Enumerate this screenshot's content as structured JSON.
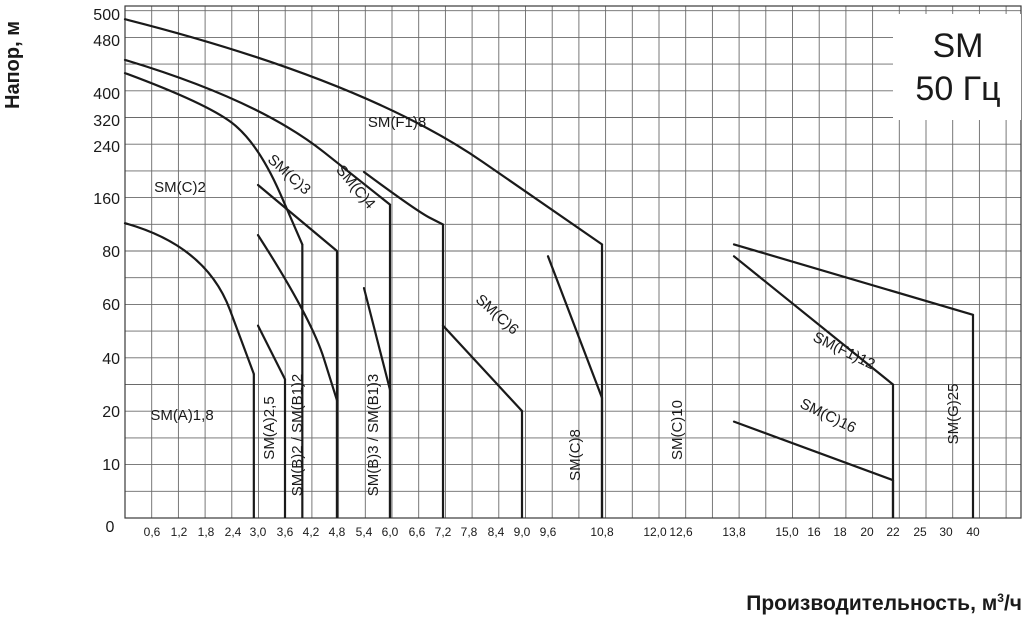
{
  "chart_data": {
    "type": "line",
    "title": "SM",
    "subtitle": "50 Гц",
    "ylabel": "Напор, м",
    "xlabel": "Производительность, м",
    "xlabel_sup": "3",
    "xlabel_suffix": "/ч",
    "origin_label": "0",
    "x_ticks": [
      "0,6",
      "1,2",
      "1,8",
      "2,4",
      "3,0",
      "3,6",
      "4,2",
      "4,8",
      "5,4",
      "6,0",
      "6,6",
      "7,2",
      "7,8",
      "8,4",
      "9,0",
      "9,6",
      "10,8",
      "12,0",
      "12,6",
      "13,8",
      "15,0",
      "16",
      "18",
      "20",
      "22",
      "25",
      "30",
      "40"
    ],
    "y_ticks": [
      "10",
      "20",
      "40",
      "60",
      "80",
      "160",
      "240",
      "320",
      "400",
      "480",
      "500"
    ],
    "grid": true,
    "series": [
      {
        "name": "SM(A)1,8",
        "x": [
          0,
          1.8,
          2.9
        ],
        "y": [
          122,
          88,
          34
        ]
      },
      {
        "name": "SM(C)2",
        "x": [
          0,
          1.8,
          3.0,
          4.0
        ],
        "y": [
          430,
          370,
          250,
          90
        ]
      },
      {
        "name": "SM(A)2,5",
        "x": [
          3.0,
          3.6
        ],
        "y": [
          52,
          32
        ]
      },
      {
        "name": "SM(B)2 / SM(B1)2",
        "x": [
          3.0,
          4.2,
          4.8
        ],
        "y": [
          104,
          55,
          24
        ]
      },
      {
        "name": "SM(C)3",
        "x": [
          3.0,
          4.8
        ],
        "y": [
          180,
          80
        ]
      },
      {
        "name": "SM(C)4",
        "x": [
          0,
          3.0,
          6.0
        ],
        "y": [
          450,
          380,
          150
        ]
      },
      {
        "name": "SM(B)3 / SM(B1)3",
        "x": [
          5.4,
          6.0
        ],
        "y": [
          66,
          28
        ]
      },
      {
        "name": "SM(C)6",
        "x": [
          5.4,
          6.6,
          7.2
        ],
        "y": [
          200,
          140,
          120
        ]
      },
      {
        "name": "SM(C)8",
        "x": [
          7.2,
          9.0
        ],
        "y": [
          52,
          20
        ]
      },
      {
        "name": "SM(C)10",
        "x": [
          9.6,
          10.8
        ],
        "y": [
          78,
          25
        ]
      },
      {
        "name": "SM(F1)8",
        "x": [
          0,
          5.4,
          10.8
        ],
        "y": [
          496,
          420,
          90
        ]
      },
      {
        "name": "SM(C)16",
        "x": [
          13.8,
          22
        ],
        "y": [
          18,
          7
        ]
      },
      {
        "name": "SM(F1)12",
        "x": [
          13.8,
          22
        ],
        "y": [
          78,
          30
        ]
      },
      {
        "name": "SM(G)25",
        "x": [
          13.8,
          40
        ],
        "y": [
          90,
          56
        ]
      }
    ]
  }
}
